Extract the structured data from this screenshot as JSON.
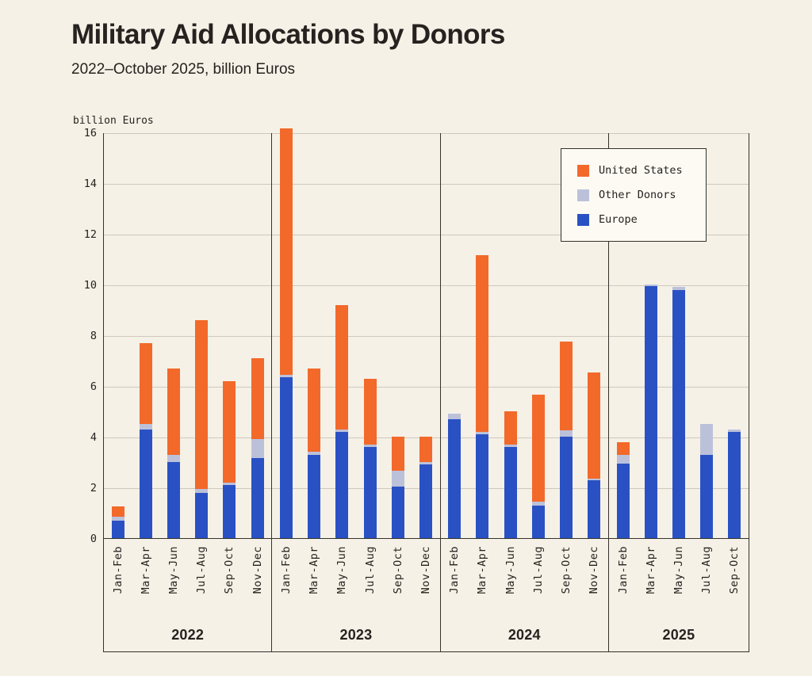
{
  "header": {
    "title": "Military Aid Allocations by Donors",
    "subtitle": "2022–October 2025, billion Euros"
  },
  "chart_data": {
    "type": "bar",
    "stacked": true,
    "title": "Military Aid Allocations by Donors",
    "subtitle": "2022–October 2025, billion Euros",
    "ylabel": "billion Euros",
    "ylim": [
      0,
      16
    ],
    "yticks": [
      0,
      2,
      4,
      6,
      8,
      10,
      12,
      14,
      16
    ],
    "grid": "horizontal",
    "legend_position": "top-right",
    "legend_order": [
      "United States",
      "Other Donors",
      "Europe"
    ],
    "groups": [
      {
        "label": "2022",
        "categories": [
          "Jan-Feb",
          "Mar-Apr",
          "May-Jun",
          "Jul-Aug",
          "Sep-Oct",
          "Nov-Dec"
        ]
      },
      {
        "label": "2023",
        "categories": [
          "Jan-Feb",
          "Mar-Apr",
          "May-Jun",
          "Jul-Aug",
          "Sep-Oct",
          "Nov-Dec"
        ]
      },
      {
        "label": "2024",
        "categories": [
          "Jan-Feb",
          "Mar-Apr",
          "May-Jun",
          "Jul-Aug",
          "Sep-Oct",
          "Nov-Dec"
        ]
      },
      {
        "label": "2025",
        "categories": [
          "Jan-Feb",
          "Mar-Apr",
          "May-Jun",
          "Jul-Aug",
          "Sep-Oct"
        ]
      }
    ],
    "series": [
      {
        "name": "Europe",
        "color": "#2a51c4",
        "values": [
          0.7,
          4.3,
          3.0,
          1.8,
          2.1,
          3.15,
          6.35,
          3.3,
          4.2,
          3.6,
          2.05,
          2.9,
          4.7,
          4.1,
          3.6,
          1.3,
          4.0,
          2.3,
          2.95,
          9.95,
          9.8,
          3.3,
          4.2
        ]
      },
      {
        "name": "Other Donors",
        "color": "#bcc1da",
        "values": [
          0.15,
          0.2,
          0.3,
          0.15,
          0.1,
          0.75,
          0.1,
          0.1,
          0.1,
          0.1,
          0.6,
          0.1,
          0.2,
          0.1,
          0.1,
          0.15,
          0.25,
          0.05,
          0.35,
          0.05,
          0.1,
          1.2,
          0.1
        ]
      },
      {
        "name": "United States",
        "color": "#f2692a",
        "values": [
          0.4,
          3.2,
          3.4,
          6.65,
          4.0,
          3.2,
          9.7,
          3.3,
          4.9,
          2.6,
          1.35,
          1.0,
          0,
          6.95,
          1.3,
          4.2,
          3.5,
          4.2,
          0.5,
          0,
          0,
          0,
          0
        ]
      }
    ],
    "colors": {
      "background": "#f5f1e7",
      "gridline": "#cfc9bc",
      "axis": "#35312c",
      "text": "#26221f"
    }
  }
}
